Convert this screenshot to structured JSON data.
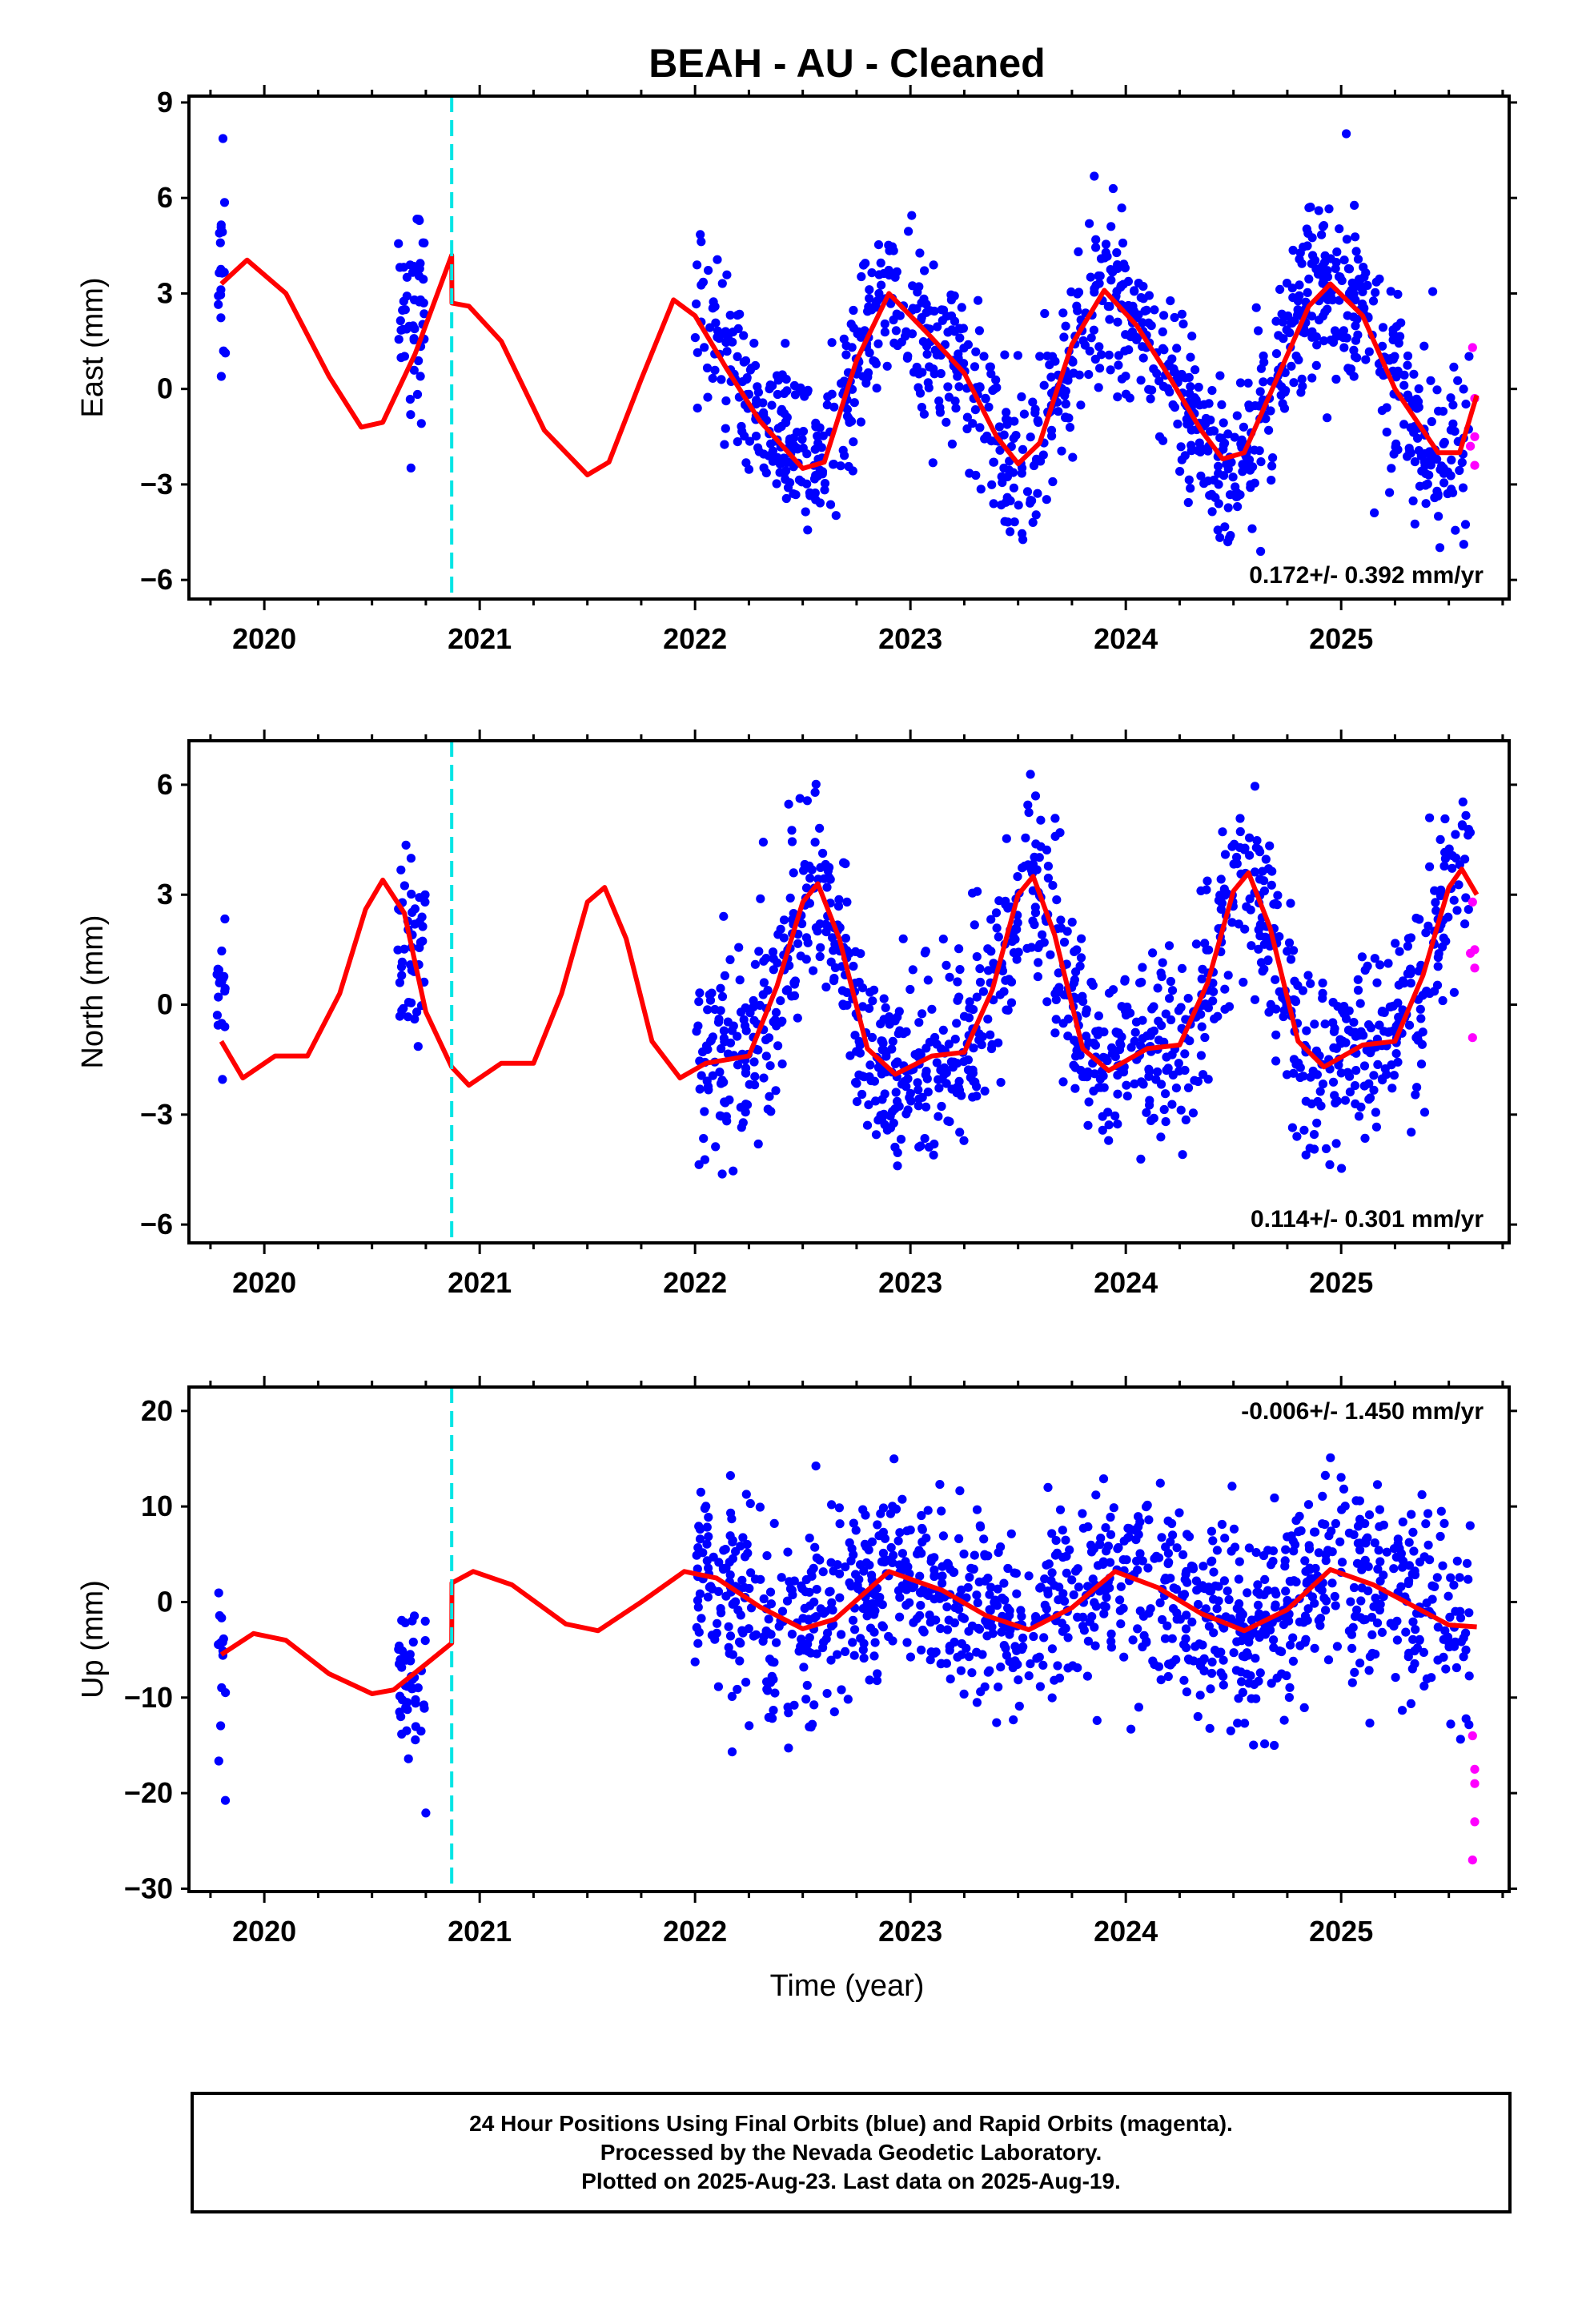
{
  "title": "BEAH  - AU - Cleaned",
  "xlabel": "Time (year)",
  "colors": {
    "final": "#0000ff",
    "rapid": "#ff00ff",
    "model": "#ff0000",
    "offset": "#00e5e5"
  },
  "chart_data": [
    {
      "id": "east",
      "type": "scatter",
      "ylabel": "East (mm)",
      "ylim": [
        -6.6,
        9.2
      ],
      "yticks": [
        -6,
        -3,
        0,
        3,
        6,
        9
      ],
      "xlim": [
        2019.65,
        2025.78
      ],
      "xticks": [
        2020,
        2021,
        2022,
        2023,
        2024,
        2025
      ],
      "rate_label": "0.172+/- 0.392 mm/yr",
      "rate_position": "bottom-right",
      "offset_line": 2020.87,
      "seasonal": [
        {
          "t": 2019.8,
          "y": 3.3
        },
        {
          "t": 2019.92,
          "y": 4.05
        },
        {
          "t": 2020.1,
          "y": 3.0
        },
        {
          "t": 2020.3,
          "y": 0.4
        },
        {
          "t": 2020.45,
          "y": -1.2
        },
        {
          "t": 2020.55,
          "y": -1.05
        },
        {
          "t": 2020.7,
          "y": 1.1
        },
        {
          "t": 2020.87,
          "y": 4.2
        },
        {
          "t": 2020.871,
          "y": 2.7
        },
        {
          "t": 2020.95,
          "y": 2.6
        },
        {
          "t": 2021.1,
          "y": 1.5
        },
        {
          "t": 2021.3,
          "y": -1.3
        },
        {
          "t": 2021.5,
          "y": -2.7
        },
        {
          "t": 2021.6,
          "y": -2.3
        },
        {
          "t": 2021.75,
          "y": 0.3
        },
        {
          "t": 2021.9,
          "y": 2.8
        },
        {
          "t": 2022.0,
          "y": 2.3
        },
        {
          "t": 2022.15,
          "y": 0.6
        },
        {
          "t": 2022.3,
          "y": -1.0
        },
        {
          "t": 2022.5,
          "y": -2.5
        },
        {
          "t": 2022.6,
          "y": -2.3
        },
        {
          "t": 2022.75,
          "y": 0.9
        },
        {
          "t": 2022.9,
          "y": 3.0
        },
        {
          "t": 2023.1,
          "y": 1.6
        },
        {
          "t": 2023.25,
          "y": 0.5
        },
        {
          "t": 2023.4,
          "y": -1.5
        },
        {
          "t": 2023.5,
          "y": -2.35
        },
        {
          "t": 2023.6,
          "y": -1.7
        },
        {
          "t": 2023.75,
          "y": 1.4
        },
        {
          "t": 2023.9,
          "y": 3.1
        },
        {
          "t": 2024.05,
          "y": 2.0
        },
        {
          "t": 2024.2,
          "y": 0.4
        },
        {
          "t": 2024.35,
          "y": -1.3
        },
        {
          "t": 2024.45,
          "y": -2.2
        },
        {
          "t": 2024.55,
          "y": -2.0
        },
        {
          "t": 2024.7,
          "y": 0.3
        },
        {
          "t": 2024.85,
          "y": 2.6
        },
        {
          "t": 2024.95,
          "y": 3.3
        },
        {
          "t": 2025.1,
          "y": 2.3
        },
        {
          "t": 2025.25,
          "y": 0.0
        },
        {
          "t": 2025.45,
          "y": -2.0
        },
        {
          "t": 2025.55,
          "y": -2.0
        },
        {
          "t": 2025.63,
          "y": -0.2
        }
      ],
      "clusters": [
        {
          "from": 2019.78,
          "to": 2019.82,
          "n": 20,
          "center": 3.4,
          "spread": 1.6
        },
        {
          "from": 2020.62,
          "to": 2020.75,
          "n": 48,
          "center": 2.2,
          "spread": 1.7
        },
        {
          "from": 2022.0,
          "to": 2025.6,
          "n": 1150,
          "center": 0.0,
          "spread": 1.4
        }
      ],
      "rapid_points": [
        {
          "t": 2025.61,
          "y": 1.3
        },
        {
          "t": 2025.62,
          "y": -0.3
        },
        {
          "t": 2025.62,
          "y": -1.5
        },
        {
          "t": 2025.62,
          "y": -2.4
        },
        {
          "t": 2025.6,
          "y": -1.8
        }
      ]
    },
    {
      "id": "north",
      "type": "scatter",
      "ylabel": "North (mm)",
      "ylim": [
        -6.5,
        7.2
      ],
      "yticks": [
        -6,
        -3,
        0,
        3,
        6
      ],
      "xlim": [
        2019.65,
        2025.78
      ],
      "xticks": [
        2020,
        2021,
        2022,
        2023,
        2024,
        2025
      ],
      "rate_label": "0.114+/- 0.301 mm/yr",
      "rate_position": "bottom-right",
      "offset_line": 2020.87,
      "seasonal": [
        {
          "t": 2019.8,
          "y": -1.0
        },
        {
          "t": 2019.9,
          "y": -2.0
        },
        {
          "t": 2020.05,
          "y": -1.4
        },
        {
          "t": 2020.2,
          "y": -1.4
        },
        {
          "t": 2020.35,
          "y": 0.3
        },
        {
          "t": 2020.47,
          "y": 2.6
        },
        {
          "t": 2020.55,
          "y": 3.4
        },
        {
          "t": 2020.65,
          "y": 2.5
        },
        {
          "t": 2020.75,
          "y": -0.2
        },
        {
          "t": 2020.87,
          "y": -1.7
        },
        {
          "t": 2020.95,
          "y": -2.2
        },
        {
          "t": 2021.1,
          "y": -1.6
        },
        {
          "t": 2021.25,
          "y": -1.6
        },
        {
          "t": 2021.38,
          "y": 0.3
        },
        {
          "t": 2021.5,
          "y": 2.8
        },
        {
          "t": 2021.58,
          "y": 3.2
        },
        {
          "t": 2021.68,
          "y": 1.8
        },
        {
          "t": 2021.8,
          "y": -1.0
        },
        {
          "t": 2021.93,
          "y": -2.0
        },
        {
          "t": 2022.05,
          "y": -1.6
        },
        {
          "t": 2022.25,
          "y": -1.4
        },
        {
          "t": 2022.38,
          "y": 0.5
        },
        {
          "t": 2022.5,
          "y": 2.8
        },
        {
          "t": 2022.57,
          "y": 3.3
        },
        {
          "t": 2022.67,
          "y": 1.8
        },
        {
          "t": 2022.8,
          "y": -1.2
        },
        {
          "t": 2022.93,
          "y": -1.9
        },
        {
          "t": 2023.1,
          "y": -1.4
        },
        {
          "t": 2023.25,
          "y": -1.3
        },
        {
          "t": 2023.38,
          "y": 0.4
        },
        {
          "t": 2023.5,
          "y": 3.0
        },
        {
          "t": 2023.57,
          "y": 3.5
        },
        {
          "t": 2023.67,
          "y": 1.9
        },
        {
          "t": 2023.8,
          "y": -1.2
        },
        {
          "t": 2023.92,
          "y": -1.8
        },
        {
          "t": 2024.1,
          "y": -1.2
        },
        {
          "t": 2024.25,
          "y": -1.1
        },
        {
          "t": 2024.38,
          "y": 0.6
        },
        {
          "t": 2024.5,
          "y": 3.1
        },
        {
          "t": 2024.57,
          "y": 3.6
        },
        {
          "t": 2024.67,
          "y": 2.1
        },
        {
          "t": 2024.8,
          "y": -1.0
        },
        {
          "t": 2024.92,
          "y": -1.7
        },
        {
          "t": 2025.1,
          "y": -1.1
        },
        {
          "t": 2025.25,
          "y": -1.0
        },
        {
          "t": 2025.38,
          "y": 0.8
        },
        {
          "t": 2025.5,
          "y": 3.2
        },
        {
          "t": 2025.56,
          "y": 3.7
        },
        {
          "t": 2025.63,
          "y": 3.0
        }
      ],
      "clusters": [
        {
          "from": 2019.78,
          "to": 2019.82,
          "n": 18,
          "center": 0.2,
          "spread": 1.0
        },
        {
          "from": 2020.62,
          "to": 2020.75,
          "n": 45,
          "center": 1.3,
          "spread": 1.2
        },
        {
          "from": 2022.0,
          "to": 2025.6,
          "n": 1150,
          "center": 0.0,
          "spread": 1.3
        }
      ],
      "rapid_points": [
        {
          "t": 2025.61,
          "y": 2.8
        },
        {
          "t": 2025.62,
          "y": 1.5
        },
        {
          "t": 2025.62,
          "y": 1.0
        },
        {
          "t": 2025.61,
          "y": -0.9
        },
        {
          "t": 2025.6,
          "y": 1.4
        }
      ]
    },
    {
      "id": "up",
      "type": "scatter",
      "ylabel": "Up (mm)",
      "ylim": [
        -30.3,
        22.5
      ],
      "yticks": [
        -30,
        -20,
        -10,
        0,
        10,
        20
      ],
      "xlim": [
        2019.65,
        2025.78
      ],
      "xticks": [
        2020,
        2021,
        2022,
        2023,
        2024,
        2025
      ],
      "rate_label": "-0.006+/- 1.450 mm/yr",
      "rate_position": "top-right",
      "offset_line": 2020.87,
      "seasonal": [
        {
          "t": 2019.8,
          "y": -5.5
        },
        {
          "t": 2019.95,
          "y": -3.3
        },
        {
          "t": 2020.1,
          "y": -4.0
        },
        {
          "t": 2020.3,
          "y": -7.5
        },
        {
          "t": 2020.5,
          "y": -9.6
        },
        {
          "t": 2020.6,
          "y": -9.2
        },
        {
          "t": 2020.75,
          "y": -6.5
        },
        {
          "t": 2020.87,
          "y": -4.3
        },
        {
          "t": 2020.871,
          "y": 2.0
        },
        {
          "t": 2020.97,
          "y": 3.2
        },
        {
          "t": 2021.15,
          "y": 1.8
        },
        {
          "t": 2021.4,
          "y": -2.3
        },
        {
          "t": 2021.55,
          "y": -3.0
        },
        {
          "t": 2021.75,
          "y": 0.0
        },
        {
          "t": 2021.95,
          "y": 3.2
        },
        {
          "t": 2022.1,
          "y": 2.5
        },
        {
          "t": 2022.3,
          "y": -0.5
        },
        {
          "t": 2022.5,
          "y": -2.8
        },
        {
          "t": 2022.65,
          "y": -1.8
        },
        {
          "t": 2022.9,
          "y": 3.2
        },
        {
          "t": 2023.15,
          "y": 1.2
        },
        {
          "t": 2023.35,
          "y": -1.4
        },
        {
          "t": 2023.55,
          "y": -2.9
        },
        {
          "t": 2023.75,
          "y": -0.6
        },
        {
          "t": 2023.95,
          "y": 3.2
        },
        {
          "t": 2024.15,
          "y": 1.5
        },
        {
          "t": 2024.35,
          "y": -1.2
        },
        {
          "t": 2024.55,
          "y": -3.0
        },
        {
          "t": 2024.75,
          "y": -0.8
        },
        {
          "t": 2024.95,
          "y": 3.4
        },
        {
          "t": 2025.15,
          "y": 1.8
        },
        {
          "t": 2025.35,
          "y": -0.6
        },
        {
          "t": 2025.5,
          "y": -2.4
        },
        {
          "t": 2025.63,
          "y": -2.6
        }
      ],
      "clusters": [
        {
          "from": 2019.78,
          "to": 2019.82,
          "n": 14,
          "center": -5.0,
          "spread": 6.0
        },
        {
          "from": 2020.62,
          "to": 2020.75,
          "n": 45,
          "center": -8.0,
          "spread": 5.0
        },
        {
          "from": 2022.0,
          "to": 2025.6,
          "n": 1150,
          "center": 0.0,
          "spread": 5.0
        }
      ],
      "rapid_points": [
        {
          "t": 2025.61,
          "y": -14.0
        },
        {
          "t": 2025.62,
          "y": -17.5
        },
        {
          "t": 2025.62,
          "y": -19.0
        },
        {
          "t": 2025.62,
          "y": -23.0
        },
        {
          "t": 2025.61,
          "y": -27.0
        }
      ]
    }
  ],
  "footer": {
    "line1": "24 Hour Positions Using Final Orbits (blue) and Rapid Orbits (magenta).",
    "line2": "Processed by the Nevada Geodetic Laboratory.",
    "line3": "Plotted on 2025-Aug-23. Last data on 2025-Aug-19."
  }
}
